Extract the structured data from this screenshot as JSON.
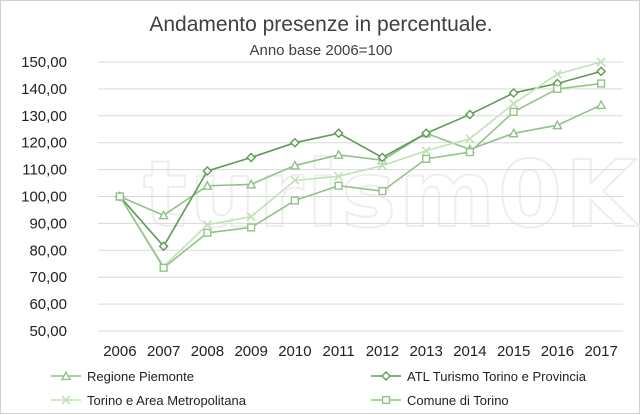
{
  "watermark": {
    "text": "turism0K"
  },
  "chart_data": {
    "type": "line",
    "title": "Andamento presenze in percentuale.",
    "subtitle": "Anno base 2006=100",
    "x": [
      "2006",
      "2007",
      "2008",
      "2009",
      "2010",
      "2011",
      "2012",
      "2013",
      "2014",
      "2015",
      "2016",
      "2017"
    ],
    "ylim": [
      50,
      150
    ],
    "yticks": [
      "50,00",
      "60,00",
      "70,00",
      "80,00",
      "90,00",
      "100,00",
      "110,00",
      "120,00",
      "130,00",
      "140,00",
      "150,00"
    ],
    "grid": true,
    "legend_position": "bottom",
    "series": [
      {
        "name": "Regione Piemonte",
        "marker": "triangle",
        "color": "#8fc28a",
        "values": [
          100,
          93,
          104,
          104.5,
          111.5,
          115.5,
          113.5,
          123.5,
          117.5,
          123.5,
          126.5,
          134
        ]
      },
      {
        "name": "ATL Turismo Torino e Provincia",
        "marker": "diamond",
        "color": "#5f9a55",
        "values": [
          100,
          81.5,
          109.5,
          114.5,
          120,
          123.5,
          114.5,
          123.5,
          130.5,
          138.5,
          142,
          146.5
        ]
      },
      {
        "name": "Torino e Area Metropolitana",
        "marker": "x",
        "color": "#c2e0b8",
        "values": [
          100,
          74,
          89.5,
          92.5,
          106,
          107.5,
          111.5,
          117,
          121.5,
          134.5,
          145.5,
          150
        ]
      },
      {
        "name": "Comune di Torino",
        "marker": "square",
        "color": "#93c486",
        "values": [
          100,
          73.5,
          86.5,
          88.5,
          98.5,
          104,
          102,
          114,
          116.5,
          131.5,
          140,
          142
        ]
      }
    ]
  }
}
